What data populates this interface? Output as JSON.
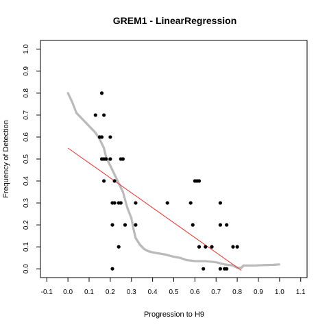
{
  "chart_data": {
    "type": "scatter",
    "title": "GREM1 - LinearRegression",
    "xlabel": "Progression to H9",
    "ylabel": "Frequency of Detection",
    "xlim": [
      -0.13,
      1.13
    ],
    "ylim": [
      -0.04,
      1.04
    ],
    "x_ticks": [
      "-0.1",
      "0.0",
      "0.1",
      "0.2",
      "0.3",
      "0.4",
      "0.5",
      "0.6",
      "0.7",
      "0.8",
      "0.9",
      "1.0",
      "1.1"
    ],
    "y_ticks": [
      "0.0",
      "0.1",
      "0.2",
      "0.3",
      "0.4",
      "0.5",
      "0.6",
      "0.7",
      "0.8",
      "0.9",
      "1.0"
    ],
    "grid": false,
    "legend": "none",
    "colors": {
      "points": "#000000",
      "smooth": "#bbbbbb",
      "regression": "#e8302a"
    },
    "points": [
      {
        "x": 0.16,
        "y": 0.8
      },
      {
        "x": 0.13,
        "y": 0.7
      },
      {
        "x": 0.17,
        "y": 0.7
      },
      {
        "x": 0.15,
        "y": 0.6
      },
      {
        "x": 0.16,
        "y": 0.6
      },
      {
        "x": 0.2,
        "y": 0.6
      },
      {
        "x": 0.16,
        "y": 0.5
      },
      {
        "x": 0.17,
        "y": 0.5
      },
      {
        "x": 0.18,
        "y": 0.5
      },
      {
        "x": 0.2,
        "y": 0.5
      },
      {
        "x": 0.25,
        "y": 0.5
      },
      {
        "x": 0.26,
        "y": 0.5
      },
      {
        "x": 0.17,
        "y": 0.4
      },
      {
        "x": 0.22,
        "y": 0.4
      },
      {
        "x": 0.6,
        "y": 0.4
      },
      {
        "x": 0.61,
        "y": 0.4
      },
      {
        "x": 0.62,
        "y": 0.4
      },
      {
        "x": 0.21,
        "y": 0.3
      },
      {
        "x": 0.22,
        "y": 0.3
      },
      {
        "x": 0.24,
        "y": 0.3
      },
      {
        "x": 0.25,
        "y": 0.3
      },
      {
        "x": 0.32,
        "y": 0.3
      },
      {
        "x": 0.47,
        "y": 0.3
      },
      {
        "x": 0.58,
        "y": 0.3
      },
      {
        "x": 0.72,
        "y": 0.3
      },
      {
        "x": 0.21,
        "y": 0.2
      },
      {
        "x": 0.27,
        "y": 0.2
      },
      {
        "x": 0.32,
        "y": 0.2
      },
      {
        "x": 0.59,
        "y": 0.2
      },
      {
        "x": 0.72,
        "y": 0.2
      },
      {
        "x": 0.75,
        "y": 0.2
      },
      {
        "x": 0.24,
        "y": 0.1
      },
      {
        "x": 0.62,
        "y": 0.1
      },
      {
        "x": 0.65,
        "y": 0.1
      },
      {
        "x": 0.68,
        "y": 0.1
      },
      {
        "x": 0.78,
        "y": 0.1
      },
      {
        "x": 0.8,
        "y": 0.1
      },
      {
        "x": 0.21,
        "y": 0.0
      },
      {
        "x": 0.64,
        "y": 0.0
      },
      {
        "x": 0.72,
        "y": 0.0
      },
      {
        "x": 0.74,
        "y": 0.0
      },
      {
        "x": 0.75,
        "y": 0.0
      }
    ],
    "smooth_curve": [
      [
        0.0,
        0.8
      ],
      [
        0.02,
        0.76
      ],
      [
        0.04,
        0.71
      ],
      [
        0.07,
        0.68
      ],
      [
        0.1,
        0.65
      ],
      [
        0.13,
        0.62
      ],
      [
        0.15,
        0.59
      ],
      [
        0.17,
        0.55
      ],
      [
        0.18,
        0.51
      ],
      [
        0.2,
        0.47
      ],
      [
        0.22,
        0.43
      ],
      [
        0.24,
        0.39
      ],
      [
        0.26,
        0.35
      ],
      [
        0.28,
        0.28
      ],
      [
        0.3,
        0.23
      ],
      [
        0.31,
        0.18
      ],
      [
        0.32,
        0.14
      ],
      [
        0.34,
        0.11
      ],
      [
        0.36,
        0.09
      ],
      [
        0.38,
        0.08
      ],
      [
        0.4,
        0.075
      ],
      [
        0.43,
        0.07
      ],
      [
        0.46,
        0.065
      ],
      [
        0.5,
        0.055
      ],
      [
        0.53,
        0.05
      ],
      [
        0.56,
        0.04
      ],
      [
        0.6,
        0.035
      ],
      [
        0.65,
        0.035
      ],
      [
        0.7,
        0.03
      ],
      [
        0.74,
        0.02
      ],
      [
        0.78,
        0.015
      ],
      [
        0.8,
        0.005
      ],
      [
        0.82,
        0.005
      ],
      [
        0.83,
        0.015
      ],
      [
        0.88,
        0.015
      ],
      [
        0.93,
        0.017
      ],
      [
        0.97,
        0.018
      ],
      [
        1.0,
        0.02
      ]
    ],
    "regression_line": {
      "intercept": 0.55,
      "slope": -0.68,
      "x_range": [
        0.0,
        0.82
      ]
    }
  }
}
